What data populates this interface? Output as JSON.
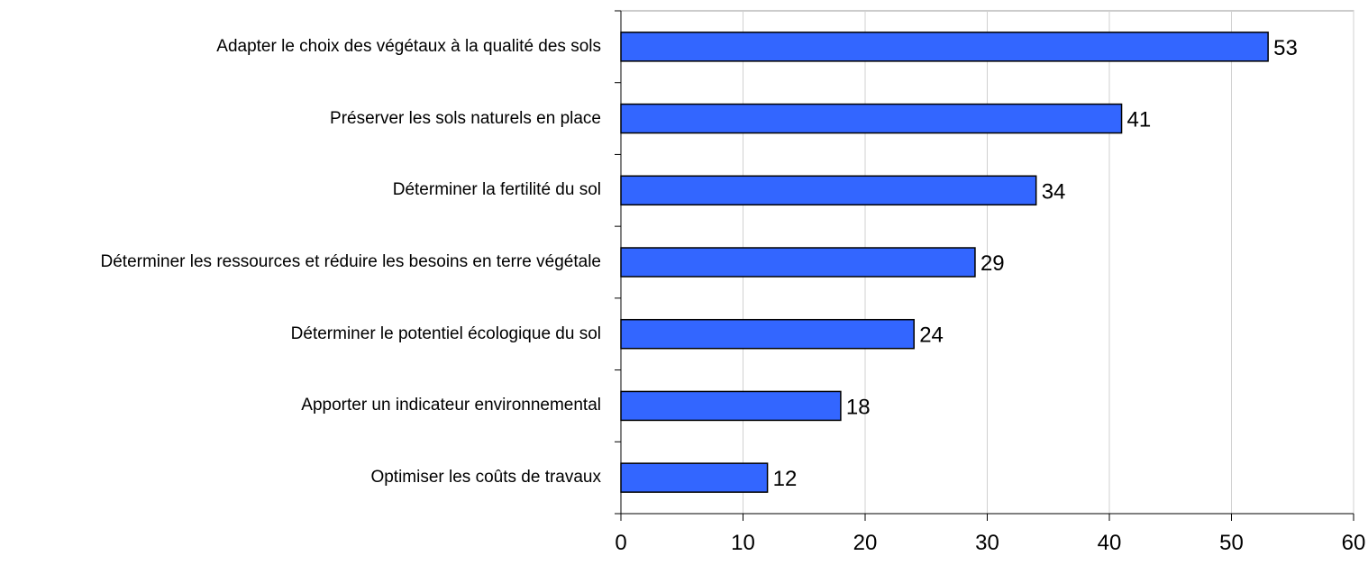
{
  "chart_data": {
    "type": "bar",
    "orientation": "horizontal",
    "categories": [
      "Adapter le choix des végétaux à la qualité des sols",
      "Préserver les sols naturels en place",
      "Déterminer la fertilité du sol",
      "Déterminer les ressources et réduire les besoins en terre végétale",
      "Déterminer le potentiel écologique du sol",
      "Apporter un indicateur environnemental",
      "Optimiser les coûts de travaux"
    ],
    "values": [
      53,
      41,
      34,
      29,
      24,
      18,
      12
    ],
    "color": "#3366ff",
    "xlim": [
      0,
      60
    ],
    "xticks": [
      0,
      10,
      20,
      30,
      40,
      50,
      60
    ],
    "grid": true
  }
}
